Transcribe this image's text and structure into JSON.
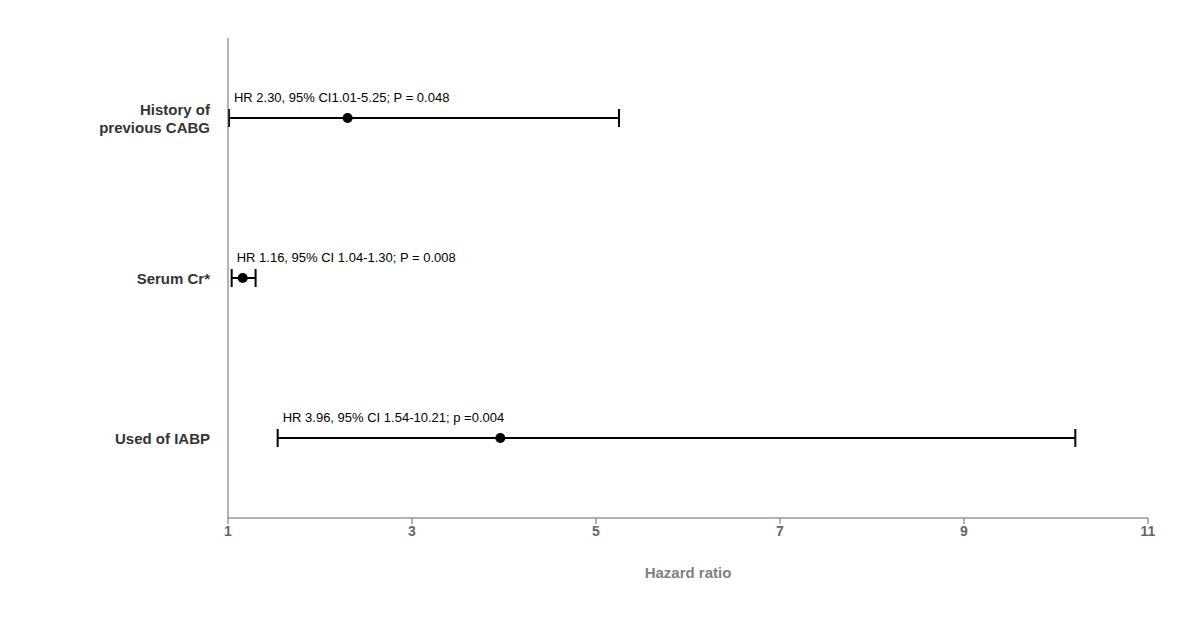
{
  "chart_data": {
    "type": "forest",
    "x_label": "Hazard ratio",
    "categories": [
      "History of\nprevious CABG",
      "Serum Cr*",
      "Used of IABP"
    ],
    "values": [
      2.3,
      1.16,
      3.96
    ],
    "ci_low": [
      1.01,
      1.04,
      1.54
    ],
    "ci_high": [
      5.25,
      1.3,
      10.21
    ],
    "annotations": [
      "HR 2.30, 95% CI1.01-5.25; P = 0.048",
      "HR 1.16, 95% CI 1.04-1.30; P = 0.008",
      "HR 3.96, 95% CI 1.54-10.21; p =0.004"
    ],
    "xlim": [
      1,
      11
    ],
    "xticks": [
      1,
      3,
      5,
      7,
      9,
      11
    ],
    "color": "#000000"
  }
}
